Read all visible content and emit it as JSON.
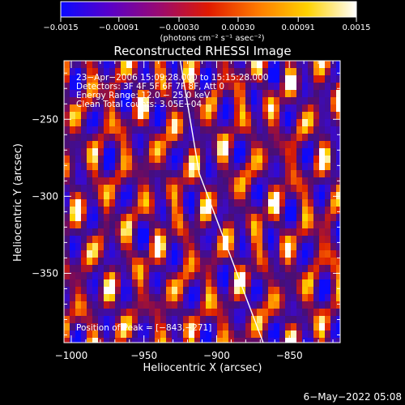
{
  "chart_data": {
    "type": "heatmap",
    "title": "Reconstructed RHESSI Image",
    "xlabel": "Heliocentric X (arcsec)",
    "ylabel": "Heliocentric Y (arcsec)",
    "xlim": [
      -1005,
      -815
    ],
    "ylim": [
      -395,
      -212
    ],
    "x_ticks": [
      -1000,
      -950,
      -900,
      -850
    ],
    "x_tick_labels": [
      "−1000",
      "−950",
      "−900",
      "−850"
    ],
    "y_ticks": [
      -250,
      -300,
      -350
    ],
    "y_tick_labels": [
      "−250",
      "−300",
      "−350"
    ],
    "colorbar": {
      "range": [
        -0.0015,
        0.0015
      ],
      "ticks": [
        -0.0015,
        -0.00091,
        -0.0003,
        0.0003,
        0.00091,
        0.0015
      ],
      "tick_labels": [
        "−0.0015",
        "−0.00091",
        "−0.00030",
        "0.00030",
        "0.00091",
        "0.0015"
      ],
      "label": "(photons cm⁻² s⁻¹ asec⁻²)",
      "colors": [
        "#0a0aff",
        "#5a00c8",
        "#9a0a70",
        "#e01a00",
        "#ff7a00",
        "#ffd200",
        "#ffffff"
      ]
    },
    "annotations": {
      "time": "23−Apr−2006 15:09:28.000 to 15:15:28.000",
      "detectors": "Detectors: 3F 4F 5F 6F 7F 8F, Att 0",
      "energy": "Energy Range: 12.0 − 25.0 keV",
      "clean": "Clean    Total counts: 3.05E+04",
      "peak": "Position of Peak = [−843,−271]"
    },
    "limb_line": [
      [
        -925,
        -212
      ],
      [
        -912,
        -285
      ],
      [
        -868,
        -395
      ]
    ],
    "peak_position": [
      -843,
      -271
    ]
  },
  "footer": {
    "timestamp": "6−May−2022 05:08"
  }
}
